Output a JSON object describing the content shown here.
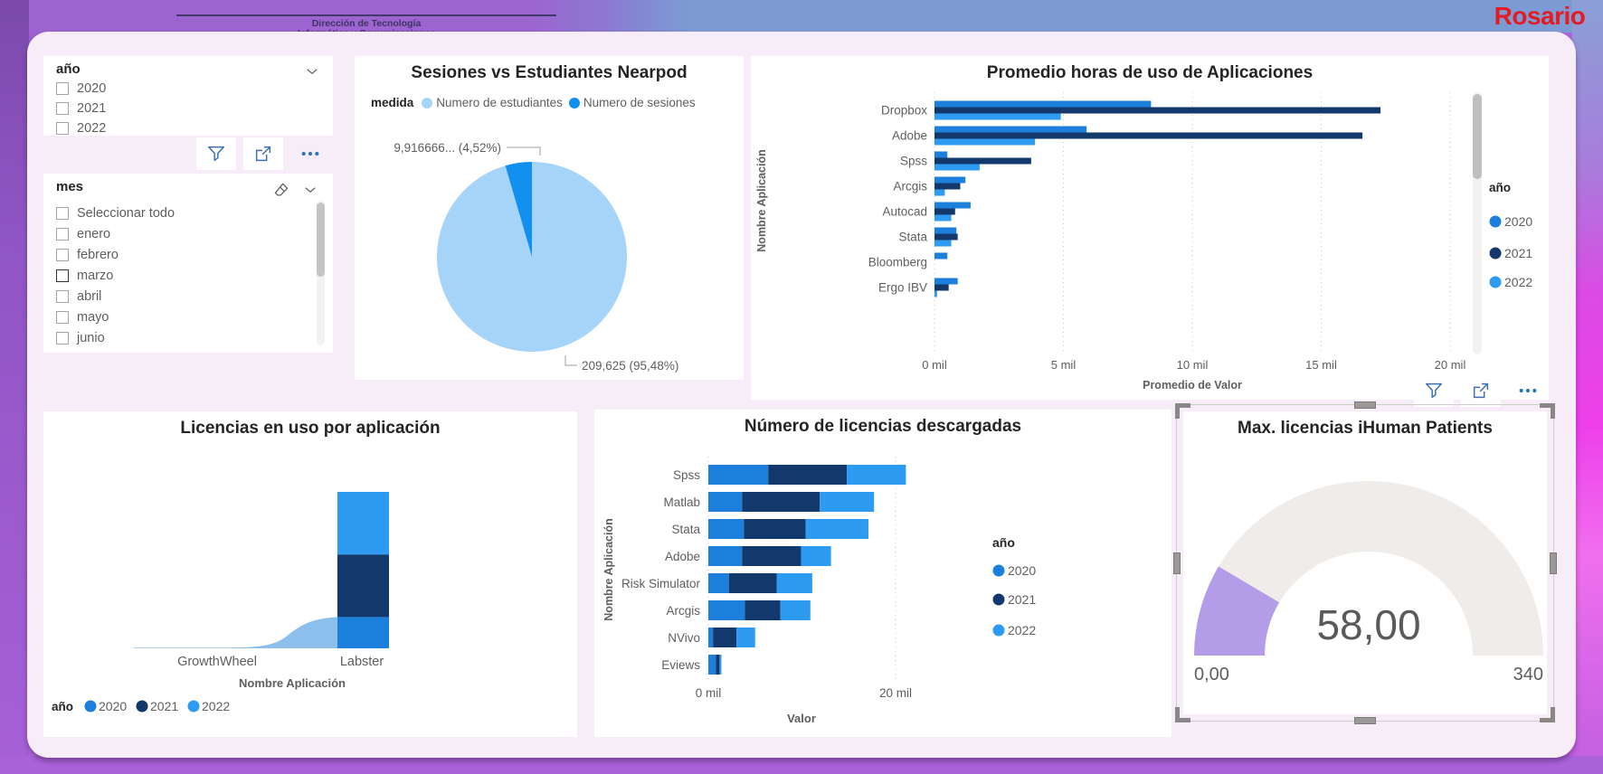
{
  "header": {
    "org_logo_line1": "Dirección de Tecnología",
    "org_logo_line2": "Informática y Comunicaciones",
    "brand_logo": "Rosario"
  },
  "slicers": {
    "ano": {
      "title": "año",
      "options": [
        "2020",
        "2021",
        "2022"
      ]
    },
    "mes": {
      "title": "mes",
      "options": [
        "Seleccionar todo",
        "enero",
        "febrero",
        "marzo",
        "abril",
        "mayo",
        "junio"
      ],
      "focused_option": "marzo"
    }
  },
  "colors": {
    "y2020": "#1B7FDB",
    "y2021": "#13386C",
    "y2022": "#2E9BF3",
    "pie_students": "#A6D4F8",
    "pie_sessions": "#1190F0",
    "gauge_fill": "#B49CE8",
    "gauge_track": "#EFECE9",
    "icon_blue": "#3A6FB0"
  },
  "chart_data": [
    {
      "id": "sesiones_vs_estudiantes",
      "type": "pie",
      "title": "Sesiones vs Estudiantes Nearpod",
      "legend_title": "medida",
      "legend_position": "top",
      "slices": [
        {
          "label": "Numero de estudiantes",
          "pct": 95.48,
          "callout": "209,625 (95,48%)",
          "color": "#A6D4F8"
        },
        {
          "label": "Numero de sesiones",
          "pct": 4.52,
          "callout": "9,916666... (4,52%)",
          "color": "#1190F0"
        }
      ]
    },
    {
      "id": "promedio_horas_uso",
      "type": "bar",
      "orientation": "horizontal",
      "grouped": true,
      "title": "Promedio horas de uso de Aplicaciones",
      "categories": [
        "Dropbox",
        "Adobe",
        "Spss",
        "Arcgis",
        "Autocad",
        "Stata",
        "Bloomberg",
        "Ergo IBV"
      ],
      "series": [
        {
          "name": "2020",
          "color": "#1B7FDB",
          "values": [
            8.4,
            5.9,
            0.5,
            1.2,
            1.4,
            0.85,
            0.5,
            0.9
          ]
        },
        {
          "name": "2021",
          "color": "#13386C",
          "values": [
            17.3,
            16.6,
            3.75,
            1.0,
            0.8,
            0.9,
            0,
            0.55
          ]
        },
        {
          "name": "2022",
          "color": "#2E9BF3",
          "values": [
            4.9,
            3.9,
            1.75,
            0.4,
            0.65,
            0.65,
            0,
            0.1
          ]
        }
      ],
      "xlabel": "Promedio de Valor",
      "ylabel": "Nombre Aplicación",
      "x_ticks": [
        {
          "v": 0,
          "label": "0 mil"
        },
        {
          "v": 5,
          "label": "5 mil"
        },
        {
          "v": 10,
          "label": "10 mil"
        },
        {
          "v": 15,
          "label": "15 mil"
        },
        {
          "v": 20,
          "label": "20 mil"
        }
      ],
      "xlim": [
        0,
        21
      ],
      "units": "mil (thousands of hours)",
      "legend_title": "año",
      "legend_position": "right",
      "grid": "dotted-vertical"
    },
    {
      "id": "licencias_en_uso",
      "type": "area",
      "stacked": true,
      "title": "Licencias en uso por aplicación",
      "categories": [
        "GrowthWheel",
        "Labster"
      ],
      "series": [
        {
          "name": "2020",
          "color": "#1B7FDB",
          "values": [
            0,
            1
          ]
        },
        {
          "name": "2021",
          "color": "#13386C",
          "values": [
            0,
            2
          ]
        },
        {
          "name": "2022",
          "color": "#2E9BF3",
          "values": [
            0,
            2
          ]
        }
      ],
      "xlabel": "Nombre Aplicación",
      "legend_title": "año",
      "legend_position": "bottom",
      "note": "relative stacked heights; no value axis shown"
    },
    {
      "id": "numero_licencias_descargadas",
      "type": "bar",
      "orientation": "horizontal",
      "stacked": true,
      "title": "Número de licencias descargadas",
      "categories": [
        "Spss",
        "Matlab",
        "Stata",
        "Adobe",
        "Risk Simulator",
        "Arcgis",
        "NVivo",
        "Eviews"
      ],
      "series": [
        {
          "name": "2020",
          "color": "#1B7FDB",
          "values": [
            6.4,
            3.6,
            3.8,
            3.6,
            2.2,
            3.9,
            0.5,
            0.8
          ]
        },
        {
          "name": "2021",
          "color": "#13386C",
          "values": [
            8.4,
            8.3,
            6.6,
            6.3,
            5.1,
            3.8,
            2.5,
            0.4
          ]
        },
        {
          "name": "2022",
          "color": "#2E9BF3",
          "values": [
            6.3,
            5.8,
            6.7,
            3.2,
            3.8,
            3.2,
            2.0,
            0.2
          ]
        }
      ],
      "xlabel": "Valor",
      "ylabel": "Nombre Aplicación",
      "x_ticks": [
        {
          "v": 0,
          "label": "0 mil"
        },
        {
          "v": 20,
          "label": "20 mil"
        }
      ],
      "xlim": [
        0,
        22
      ],
      "units": "mil (thousands)",
      "legend_title": "año",
      "legend_position": "right",
      "grid": "dotted-vertical"
    },
    {
      "id": "max_licencias_ihuman",
      "type": "gauge",
      "title": "Max. licencias iHuman Patients",
      "value": 58,
      "value_label": "58,00",
      "min": 0,
      "max": 340,
      "min_label": "0,00",
      "max_label": "340",
      "fill_color": "#B49CE8",
      "track_color": "#EFECE9"
    }
  ]
}
